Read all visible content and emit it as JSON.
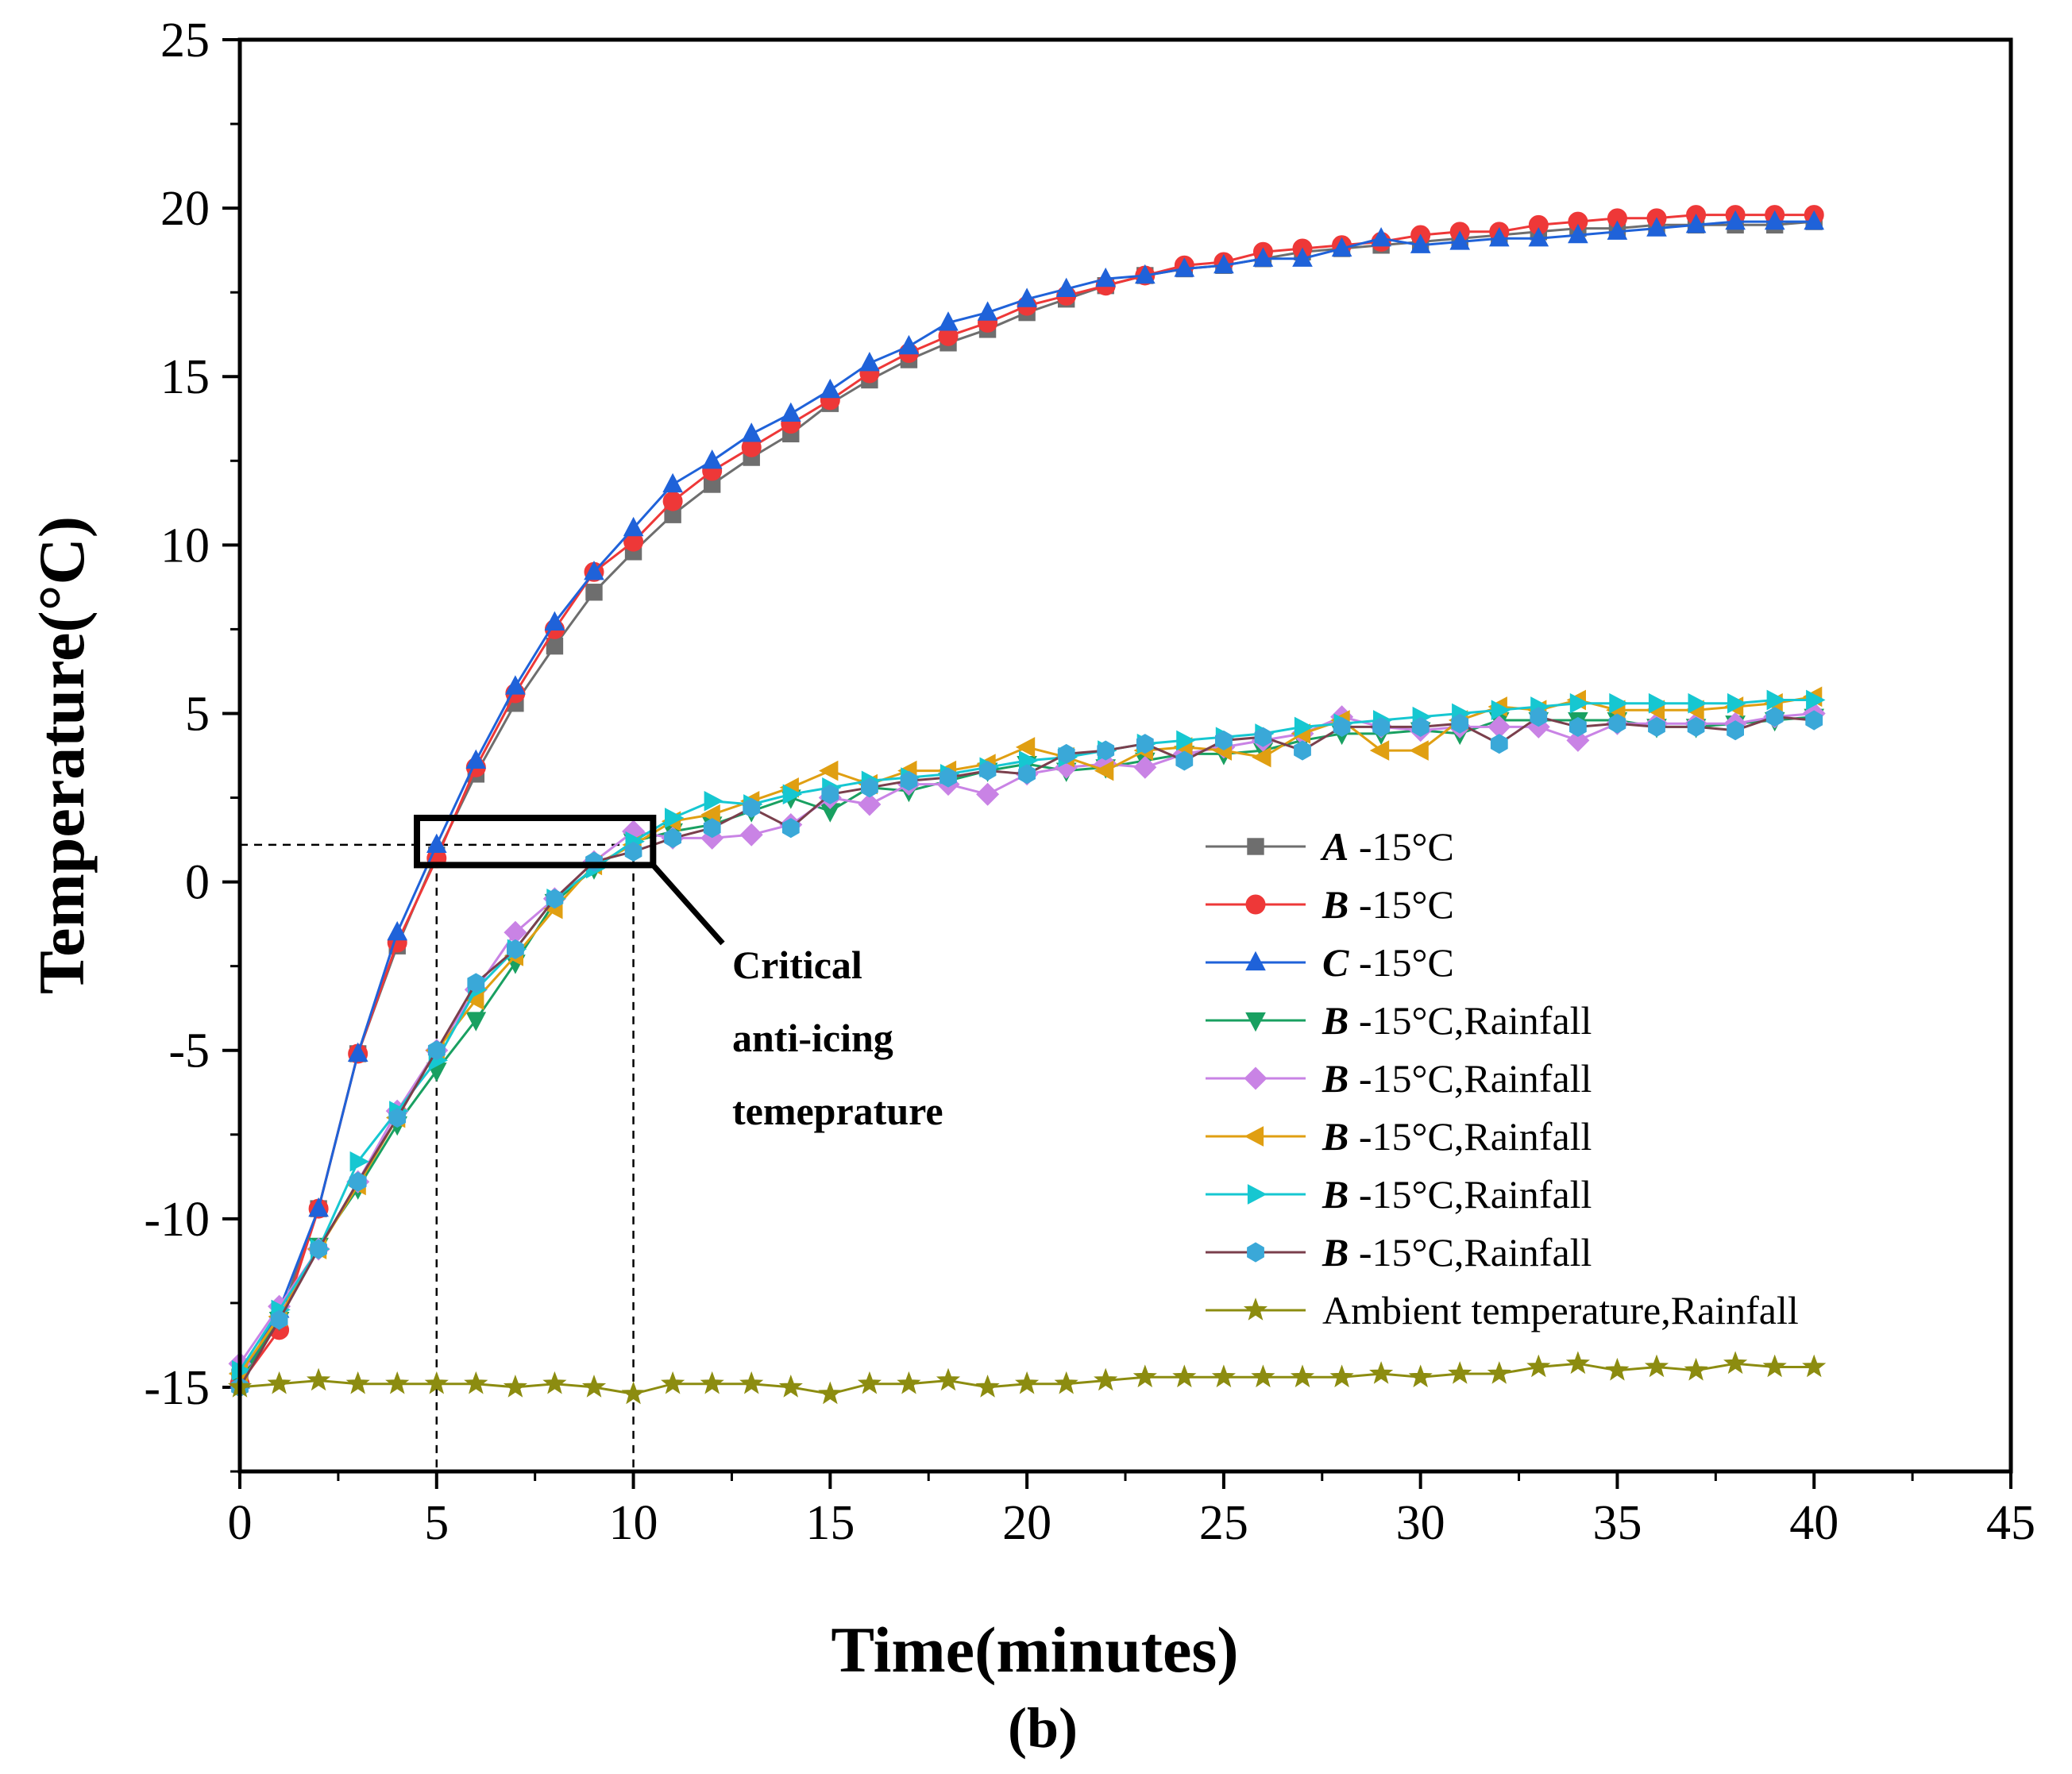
{
  "chart_data": {
    "type": "line",
    "xlabel": "Time(minutes)",
    "ylabel": "Temperature(°C)",
    "caption": "(b)",
    "xlim": [
      0,
      45
    ],
    "ylim": [
      -17.5,
      25
    ],
    "xticks": [
      0,
      5,
      10,
      15,
      20,
      25,
      30,
      35,
      40,
      45
    ],
    "yticks": [
      -15,
      -10,
      -5,
      0,
      5,
      10,
      15,
      20,
      25
    ],
    "xtick_labels": [
      "0",
      "5",
      "10",
      "15",
      "20",
      "25",
      "30",
      "35",
      "40",
      "45"
    ],
    "ytick_labels": [
      "-15",
      "-10",
      "-5",
      "0",
      "5",
      "10",
      "15",
      "20",
      "25"
    ],
    "grid": false,
    "legend_position": "bottom-right",
    "annotation": {
      "lines": [
        "Critical",
        "anti-icing",
        "temeprature"
      ],
      "threshold_y": 1.1,
      "x_marks": [
        5,
        10
      ],
      "box": {
        "x0": 4.5,
        "x1": 10.5,
        "y0": 0.5,
        "y1": 1.9
      }
    },
    "series": [
      {
        "name": "A -15°C",
        "prefix": "A",
        "suffix": " -15°C",
        "color": "#6e6e6e",
        "marker": "square",
        "values": [
          -14.7,
          -13.0,
          -9.7,
          -5.1,
          -1.9,
          0.8,
          3.2,
          5.3,
          7.0,
          8.6,
          9.8,
          10.9,
          11.8,
          12.6,
          13.3,
          14.2,
          14.9,
          15.5,
          16.0,
          16.4,
          16.9,
          17.3,
          17.7,
          18.0,
          18.2,
          18.3,
          18.5,
          18.7,
          18.8,
          18.9,
          19.0,
          19.1,
          19.2,
          19.3,
          19.4,
          19.4,
          19.5,
          19.5,
          19.5,
          19.5,
          19.6
        ]
      },
      {
        "name": "B -15°C",
        "prefix": "B",
        "suffix": " -15°C",
        "color": "#ee3838",
        "marker": "circle",
        "values": [
          -14.9,
          -13.3,
          -9.7,
          -5.1,
          -1.8,
          0.7,
          3.4,
          5.6,
          7.5,
          9.2,
          10.1,
          11.3,
          12.2,
          12.9,
          13.6,
          14.3,
          15.1,
          15.7,
          16.2,
          16.6,
          17.1,
          17.4,
          17.7,
          18.0,
          18.3,
          18.4,
          18.7,
          18.8,
          18.9,
          19.0,
          19.2,
          19.3,
          19.3,
          19.5,
          19.6,
          19.7,
          19.7,
          19.8,
          19.8,
          19.8,
          19.8
        ]
      },
      {
        "name": "C -15°C",
        "prefix": "C",
        "suffix": " -15°C",
        "color": "#1f62d9",
        "marker": "triangle-up",
        "values": [
          -14.8,
          -12.7,
          -9.7,
          -5.1,
          -1.5,
          1.1,
          3.6,
          5.8,
          7.7,
          9.2,
          10.5,
          11.8,
          12.5,
          13.3,
          13.9,
          14.6,
          15.4,
          15.9,
          16.6,
          16.9,
          17.3,
          17.6,
          17.9,
          18.0,
          18.2,
          18.3,
          18.5,
          18.5,
          18.8,
          19.1,
          18.9,
          19.0,
          19.1,
          19.1,
          19.2,
          19.3,
          19.4,
          19.5,
          19.6,
          19.6,
          19.6
        ]
      },
      {
        "name": "B -15°C,Rainfall",
        "prefix": "B",
        "suffix": " -15°C,Rainfall",
        "color": "#19a061",
        "marker": "triangle-down",
        "values": [
          -14.8,
          -13.0,
          -10.8,
          -9.1,
          -7.2,
          -5.6,
          -4.1,
          -2.4,
          -0.6,
          0.4,
          1.2,
          1.5,
          1.7,
          2.1,
          2.5,
          2.1,
          2.8,
          2.7,
          3.0,
          3.3,
          3.5,
          3.3,
          3.4,
          3.6,
          3.8,
          3.8,
          3.9,
          4.2,
          4.4,
          4.4,
          4.5,
          4.4,
          4.8,
          4.8,
          4.8,
          4.8,
          4.6,
          4.6,
          4.7,
          4.8,
          4.9
        ]
      },
      {
        "name": "B -15°C,Rainfall",
        "prefix": "B",
        "suffix": " -15°C,Rainfall",
        "color": "#c983e5",
        "marker": "diamond",
        "values": [
          -14.3,
          -12.6,
          -10.9,
          -8.9,
          -6.8,
          -5.0,
          -3.2,
          -1.5,
          -0.5,
          0.6,
          1.5,
          1.3,
          1.3,
          1.4,
          1.7,
          2.5,
          2.3,
          2.9,
          2.9,
          2.6,
          3.2,
          3.4,
          3.5,
          3.4,
          3.8,
          4.0,
          4.2,
          4.4,
          4.9,
          4.6,
          4.5,
          4.6,
          4.6,
          4.6,
          4.2,
          4.7,
          4.7,
          4.7,
          4.7,
          4.9,
          5.0
        ]
      },
      {
        "name": "B -15°C,Rainfall",
        "prefix": "B",
        "suffix": " -15°C,Rainfall",
        "color": "#e09f12",
        "marker": "triangle-left",
        "values": [
          -14.6,
          -12.9,
          -10.9,
          -9.0,
          -7.0,
          -5.0,
          -3.5,
          -2.2,
          -0.8,
          0.5,
          1.1,
          1.8,
          2.0,
          2.4,
          2.8,
          3.3,
          2.9,
          3.3,
          3.3,
          3.5,
          4.0,
          3.7,
          3.3,
          3.9,
          4.0,
          3.9,
          3.7,
          4.4,
          4.8,
          3.9,
          3.9,
          4.8,
          5.2,
          5.1,
          5.4,
          5.1,
          5.1,
          5.1,
          5.2,
          5.3,
          5.5
        ]
      },
      {
        "name": "B -15°C,Rainfall",
        "prefix": "B",
        "suffix": " -15°C,Rainfall",
        "color": "#16c7d1",
        "marker": "triangle-right",
        "values": [
          -14.5,
          -12.7,
          -10.9,
          -8.3,
          -6.8,
          -5.3,
          -3.2,
          -2.0,
          -0.5,
          0.4,
          1.2,
          1.9,
          2.4,
          2.3,
          2.6,
          2.8,
          3.0,
          3.1,
          3.2,
          3.4,
          3.6,
          3.7,
          3.9,
          4.1,
          4.2,
          4.3,
          4.4,
          4.6,
          4.7,
          4.8,
          4.9,
          5.0,
          5.1,
          5.2,
          5.3,
          5.3,
          5.3,
          5.3,
          5.3,
          5.4,
          5.4
        ]
      },
      {
        "name": "B -15°C,Rainfall",
        "prefix": "B",
        "suffix": " -15°C,Rainfall",
        "color": "#3aa8d8",
        "line_color": "#7a3f4c",
        "marker": "hexagon",
        "values": [
          -15.0,
          -13.0,
          -10.9,
          -8.9,
          -7.0,
          -5.0,
          -3.0,
          -2.0,
          -0.5,
          0.6,
          0.9,
          1.3,
          1.6,
          2.2,
          1.6,
          2.6,
          2.8,
          3.0,
          3.1,
          3.3,
          3.2,
          3.8,
          3.9,
          4.1,
          3.6,
          4.2,
          4.3,
          3.9,
          4.6,
          4.6,
          4.6,
          4.7,
          4.1,
          4.9,
          4.6,
          4.7,
          4.6,
          4.6,
          4.5,
          4.9,
          4.8
        ]
      },
      {
        "name": "Ambient temperature,Rainfall",
        "prefix": "",
        "suffix": "Ambient temperature,Rainfall",
        "color": "#8c8c10",
        "marker": "star",
        "values": [
          -15.0,
          -14.9,
          -14.8,
          -14.9,
          -14.9,
          -14.9,
          -14.9,
          -15.0,
          -14.9,
          -15.0,
          -15.2,
          -14.9,
          -14.9,
          -14.9,
          -15.0,
          -15.2,
          -14.9,
          -14.9,
          -14.8,
          -15.0,
          -14.9,
          -14.9,
          -14.8,
          -14.7,
          -14.7,
          -14.7,
          -14.7,
          -14.7,
          -14.7,
          -14.6,
          -14.7,
          -14.6,
          -14.6,
          -14.4,
          -14.3,
          -14.5,
          -14.4,
          -14.5,
          -14.3,
          -14.4,
          -14.4
        ]
      }
    ]
  }
}
